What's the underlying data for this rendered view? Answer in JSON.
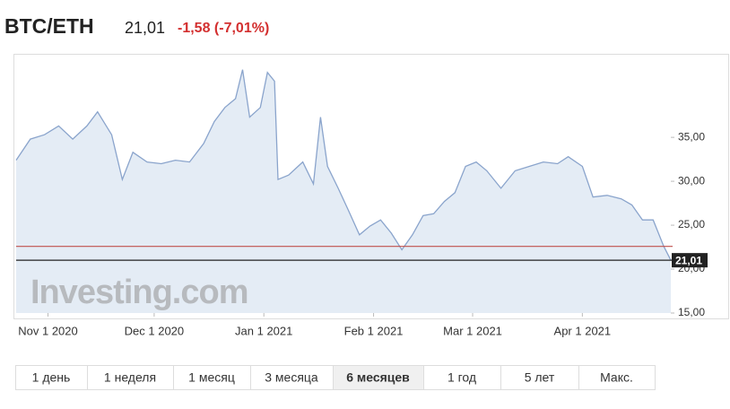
{
  "header": {
    "symbol": "BTC/ETH",
    "price": "21,01",
    "change": "-1,58 (-7,01%)"
  },
  "watermark": "Investing.com",
  "range_buttons": [
    "1 день",
    "1 неделя",
    "1 месяц",
    "3 месяца",
    "6 месяцев",
    "1 год",
    "5 лет",
    "Макс."
  ],
  "active_range": 4,
  "chart_data": {
    "type": "line",
    "x": [
      "2020-10-23",
      "2020-10-27",
      "2020-10-31",
      "2020-11-04",
      "2020-11-08",
      "2020-11-12",
      "2020-11-15",
      "2020-11-19",
      "2020-11-22",
      "2020-11-25",
      "2020-11-29",
      "2020-12-03",
      "2020-12-07",
      "2020-12-11",
      "2020-12-15",
      "2020-12-18",
      "2020-12-21",
      "2020-12-24",
      "2020-12-26",
      "2020-12-28",
      "2020-12-31",
      "2021-01-02",
      "2021-01-04",
      "2021-01-05",
      "2021-01-08",
      "2021-01-12",
      "2021-01-15",
      "2021-01-17",
      "2021-01-19",
      "2021-01-22",
      "2021-01-25",
      "2021-01-28",
      "2021-01-31",
      "2021-02-03",
      "2021-02-06",
      "2021-02-09",
      "2021-02-12",
      "2021-02-15",
      "2021-02-18",
      "2021-02-21",
      "2021-02-24",
      "2021-02-27",
      "2021-03-02",
      "2021-03-05",
      "2021-03-09",
      "2021-03-13",
      "2021-03-17",
      "2021-03-21",
      "2021-03-25",
      "2021-03-28",
      "2021-04-01",
      "2021-04-04",
      "2021-04-08",
      "2021-04-12",
      "2021-04-15",
      "2021-04-18",
      "2021-04-21",
      "2021-04-24",
      "2021-04-26"
    ],
    "series": [
      {
        "color": "#8aa4cc",
        "values": [
          32.4,
          34.8,
          35.3,
          36.3,
          34.8,
          36.3,
          37.9,
          35.3,
          30.2,
          33.3,
          32.2,
          32.0,
          32.4,
          32.2,
          34.3,
          36.8,
          38.4,
          39.4,
          42.7,
          37.3,
          38.4,
          42.4,
          41.4,
          30.2,
          30.7,
          32.2,
          29.7,
          37.3,
          31.7,
          29.2,
          26.6,
          23.9,
          24.9,
          25.6,
          24.1,
          22.2,
          23.9,
          26.1,
          26.3,
          27.7,
          28.7,
          31.7,
          32.2,
          31.2,
          29.2,
          31.2,
          31.7,
          32.2,
          32.0,
          32.8,
          31.7,
          28.2,
          28.4,
          28.0,
          27.3,
          25.6,
          25.6,
          22.6,
          21.01
        ]
      }
    ],
    "xlim": [
      "2020-10-23",
      "2021-04-26"
    ],
    "xticks": [
      {
        "value": "2020-11-01",
        "label": "Nov 1 2020"
      },
      {
        "value": "2020-12-01",
        "label": "Dec 1 2020"
      },
      {
        "value": "2021-01-01",
        "label": "Jan 1 2021"
      },
      {
        "value": "2021-02-01",
        "label": "Feb 1 2021"
      },
      {
        "value": "2021-03-01",
        "label": "Mar 1 2021"
      },
      {
        "value": "2021-04-01",
        "label": "Apr 1 2021"
      }
    ],
    "ylim": [
      15,
      44
    ],
    "yticks": [
      {
        "value": 15,
        "label": "15,00"
      },
      {
        "value": 20,
        "label": "20,00"
      },
      {
        "value": 25,
        "label": "25,00"
      },
      {
        "value": 30,
        "label": "30,00"
      },
      {
        "value": 35,
        "label": "35,00"
      }
    ],
    "reference_lines": [
      {
        "value": 22.59,
        "color": "#c0504d"
      },
      {
        "value": 21.01,
        "color": "#222222",
        "label": "21,01"
      }
    ],
    "area_fill": "#e4ecf5"
  }
}
